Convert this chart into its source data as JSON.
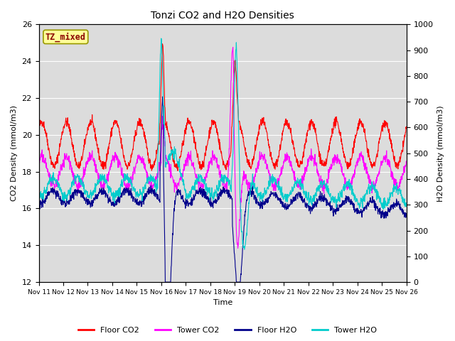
{
  "title": "Tonzi CO2 and H2O Densities",
  "xlabel": "Time",
  "ylabel_left": "CO2 Density (mmol/m3)",
  "ylabel_right": "H2O Density (mmol/m3)",
  "ylim_left": [
    12,
    26
  ],
  "ylim_right": [
    0,
    1000
  ],
  "annotation_text": "TZ_mixed",
  "annotation_color": "#8B0000",
  "annotation_bg": "#FFFF99",
  "plot_bg": "#DCDCDC",
  "fig_bg": "#FFFFFF",
  "colors": {
    "floor_co2": "#FF0000",
    "tower_co2": "#FF00FF",
    "floor_h2o": "#00008B",
    "tower_h2o": "#00CCCC"
  },
  "lw": 0.8,
  "legend_labels": [
    "Floor CO2",
    "Tower CO2",
    "Floor H2O",
    "Tower H2O"
  ],
  "xtick_labels": [
    "Nov 11",
    "Nov 12",
    "Nov 13",
    "Nov 14",
    "Nov 15",
    "Nov 16",
    "Nov 17",
    "Nov 18",
    "Nov 19",
    "Nov 20",
    "Nov 21",
    "Nov 22",
    "Nov 23",
    "Nov 24",
    "Nov 25",
    "Nov 26"
  ],
  "n_days": 15,
  "pts_per_day": 96,
  "seed": 42
}
